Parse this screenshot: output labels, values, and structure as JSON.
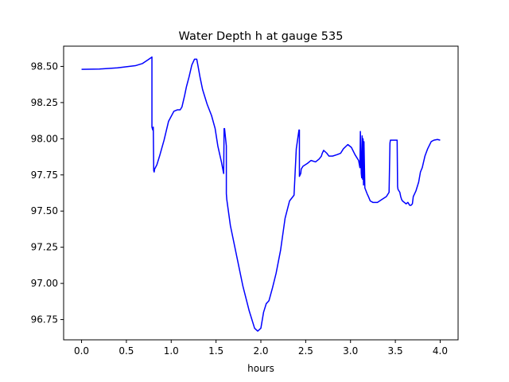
{
  "chart_data": {
    "type": "line",
    "title": "Water Depth h at gauge 535",
    "xlabel": "hours",
    "ylabel": "",
    "xlim": [
      -0.2,
      4.2
    ],
    "ylim": [
      96.61,
      98.64
    ],
    "x_ticks": [
      0.0,
      0.5,
      1.0,
      1.5,
      2.0,
      2.5,
      3.0,
      3.5,
      4.0
    ],
    "x_tick_labels": [
      "0.0",
      "0.5",
      "1.0",
      "1.5",
      "2.0",
      "2.5",
      "3.0",
      "3.5",
      "4.0"
    ],
    "y_ticks": [
      96.75,
      97.0,
      97.25,
      97.5,
      97.75,
      98.0,
      98.25,
      98.5
    ],
    "y_tick_labels": [
      "96.75",
      "97.00",
      "97.25",
      "97.50",
      "97.75",
      "98.00",
      "98.25",
      "98.50"
    ],
    "grid": false,
    "legend": "none",
    "series": [
      {
        "color": "#0000ff",
        "x": [
          0.0,
          0.2,
          0.4,
          0.6,
          0.68,
          0.74,
          0.775,
          0.785,
          0.785,
          0.795,
          0.8,
          0.805,
          0.81,
          0.815,
          0.84,
          0.87,
          0.92,
          0.97,
          1.03,
          1.07,
          1.1,
          1.12,
          1.15,
          1.17,
          1.2,
          1.23,
          1.26,
          1.285,
          1.3,
          1.32,
          1.35,
          1.4,
          1.45,
          1.49,
          1.52,
          1.56,
          1.585,
          1.59,
          1.595,
          1.615,
          1.615,
          1.62,
          1.66,
          1.72,
          1.8,
          1.87,
          1.93,
          1.965,
          2.0,
          2.03,
          2.06,
          2.09,
          2.13,
          2.17,
          2.22,
          2.27,
          2.32,
          2.37,
          2.395,
          2.395,
          2.425,
          2.43,
          2.43,
          2.445,
          2.45,
          2.47,
          2.52,
          2.56,
          2.61,
          2.65,
          2.675,
          2.685,
          2.7,
          2.735,
          2.76,
          2.8,
          2.85,
          2.89,
          2.92,
          2.97,
          3.01,
          3.05,
          3.09,
          3.105,
          3.11,
          3.12,
          3.125,
          3.13,
          3.135,
          3.14,
          3.145,
          3.15,
          3.16,
          3.185,
          3.2,
          3.22,
          3.25,
          3.3,
          3.35,
          3.4,
          3.43,
          3.44,
          3.445,
          3.47,
          3.5,
          3.52,
          3.525,
          3.53,
          3.55,
          3.56,
          3.57,
          3.58,
          3.6,
          3.62,
          3.64,
          3.66,
          3.675,
          3.69,
          3.7,
          3.73,
          3.76,
          3.78,
          3.8,
          3.83,
          3.86,
          3.9,
          3.93,
          3.97,
          4.0
        ],
        "y": [
          98.48,
          98.482,
          98.49,
          98.505,
          98.52,
          98.545,
          98.56,
          98.565,
          98.08,
          98.06,
          98.08,
          97.78,
          97.77,
          97.79,
          97.82,
          97.88,
          97.99,
          98.12,
          98.19,
          98.2,
          98.2,
          98.22,
          98.3,
          98.36,
          98.43,
          98.51,
          98.55,
          98.55,
          98.5,
          98.43,
          98.34,
          98.24,
          98.16,
          98.07,
          97.95,
          97.84,
          97.76,
          98.07,
          98.07,
          97.95,
          97.62,
          97.58,
          97.4,
          97.22,
          96.98,
          96.81,
          96.69,
          96.67,
          96.69,
          96.8,
          96.86,
          96.88,
          96.97,
          97.07,
          97.23,
          97.45,
          97.57,
          97.61,
          97.93,
          97.93,
          98.06,
          98.06,
          97.74,
          97.76,
          97.79,
          97.81,
          97.83,
          97.85,
          97.84,
          97.86,
          97.88,
          97.9,
          97.92,
          97.9,
          97.88,
          97.88,
          97.89,
          97.9,
          97.93,
          97.96,
          97.94,
          97.89,
          97.85,
          97.8,
          98.05,
          97.76,
          97.73,
          98.02,
          97.72,
          98.0,
          97.68,
          97.98,
          97.66,
          97.62,
          97.6,
          97.57,
          97.56,
          97.56,
          97.58,
          97.6,
          97.63,
          97.97,
          97.99,
          97.99,
          97.99,
          97.99,
          97.67,
          97.65,
          97.63,
          97.6,
          97.58,
          97.57,
          97.56,
          97.55,
          97.56,
          97.54,
          97.54,
          97.55,
          97.6,
          97.64,
          97.7,
          97.77,
          97.8,
          97.88,
          97.93,
          97.98,
          97.99,
          97.995,
          97.99
        ]
      }
    ]
  }
}
